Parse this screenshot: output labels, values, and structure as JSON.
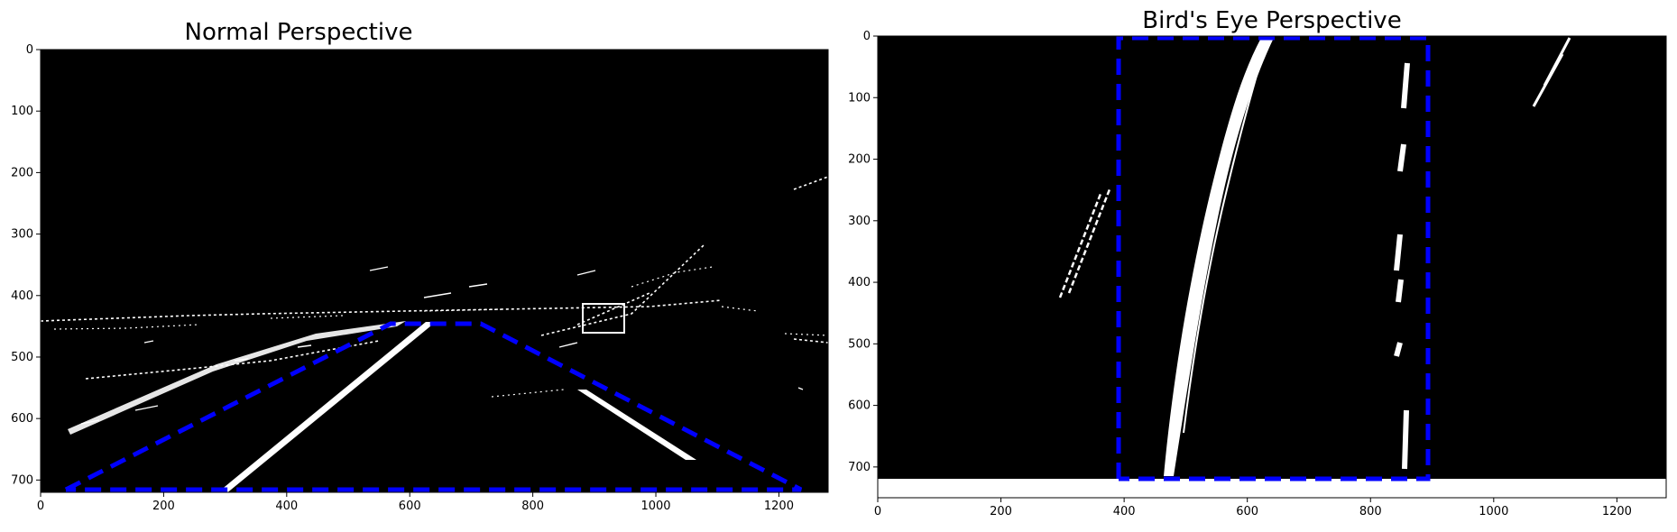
{
  "chart_data": [
    {
      "type": "image",
      "title": "Normal Perspective",
      "xlim": [
        0,
        1280
      ],
      "ylim": [
        720,
        0
      ],
      "x_ticks": [
        0,
        200,
        400,
        600,
        800,
        1000,
        1200
      ],
      "y_ticks": [
        0,
        100,
        200,
        300,
        400,
        500,
        600,
        700
      ],
      "overlay": {
        "shape": "trapezoid",
        "style": "dashed",
        "color": "#0000ff",
        "points": [
          [
            40,
            720
          ],
          [
            565,
            450
          ],
          [
            715,
            450
          ],
          [
            1230,
            720
          ]
        ]
      },
      "background_color": "#000000"
    },
    {
      "type": "image",
      "title": "Bird's Eye Perspective",
      "xlim": [
        0,
        1280
      ],
      "ylim": [
        750,
        0
      ],
      "x_ticks": [
        0,
        200,
        400,
        600,
        800,
        1000,
        1200
      ],
      "y_ticks": [
        0,
        100,
        200,
        300,
        400,
        500,
        600,
        700
      ],
      "overlay": {
        "shape": "rectangle",
        "style": "dashed",
        "color": "#0000ff",
        "points": [
          [
            390,
            720
          ],
          [
            390,
            0
          ],
          [
            890,
            0
          ],
          [
            890,
            720
          ]
        ]
      },
      "background_color": "#000000"
    }
  ]
}
